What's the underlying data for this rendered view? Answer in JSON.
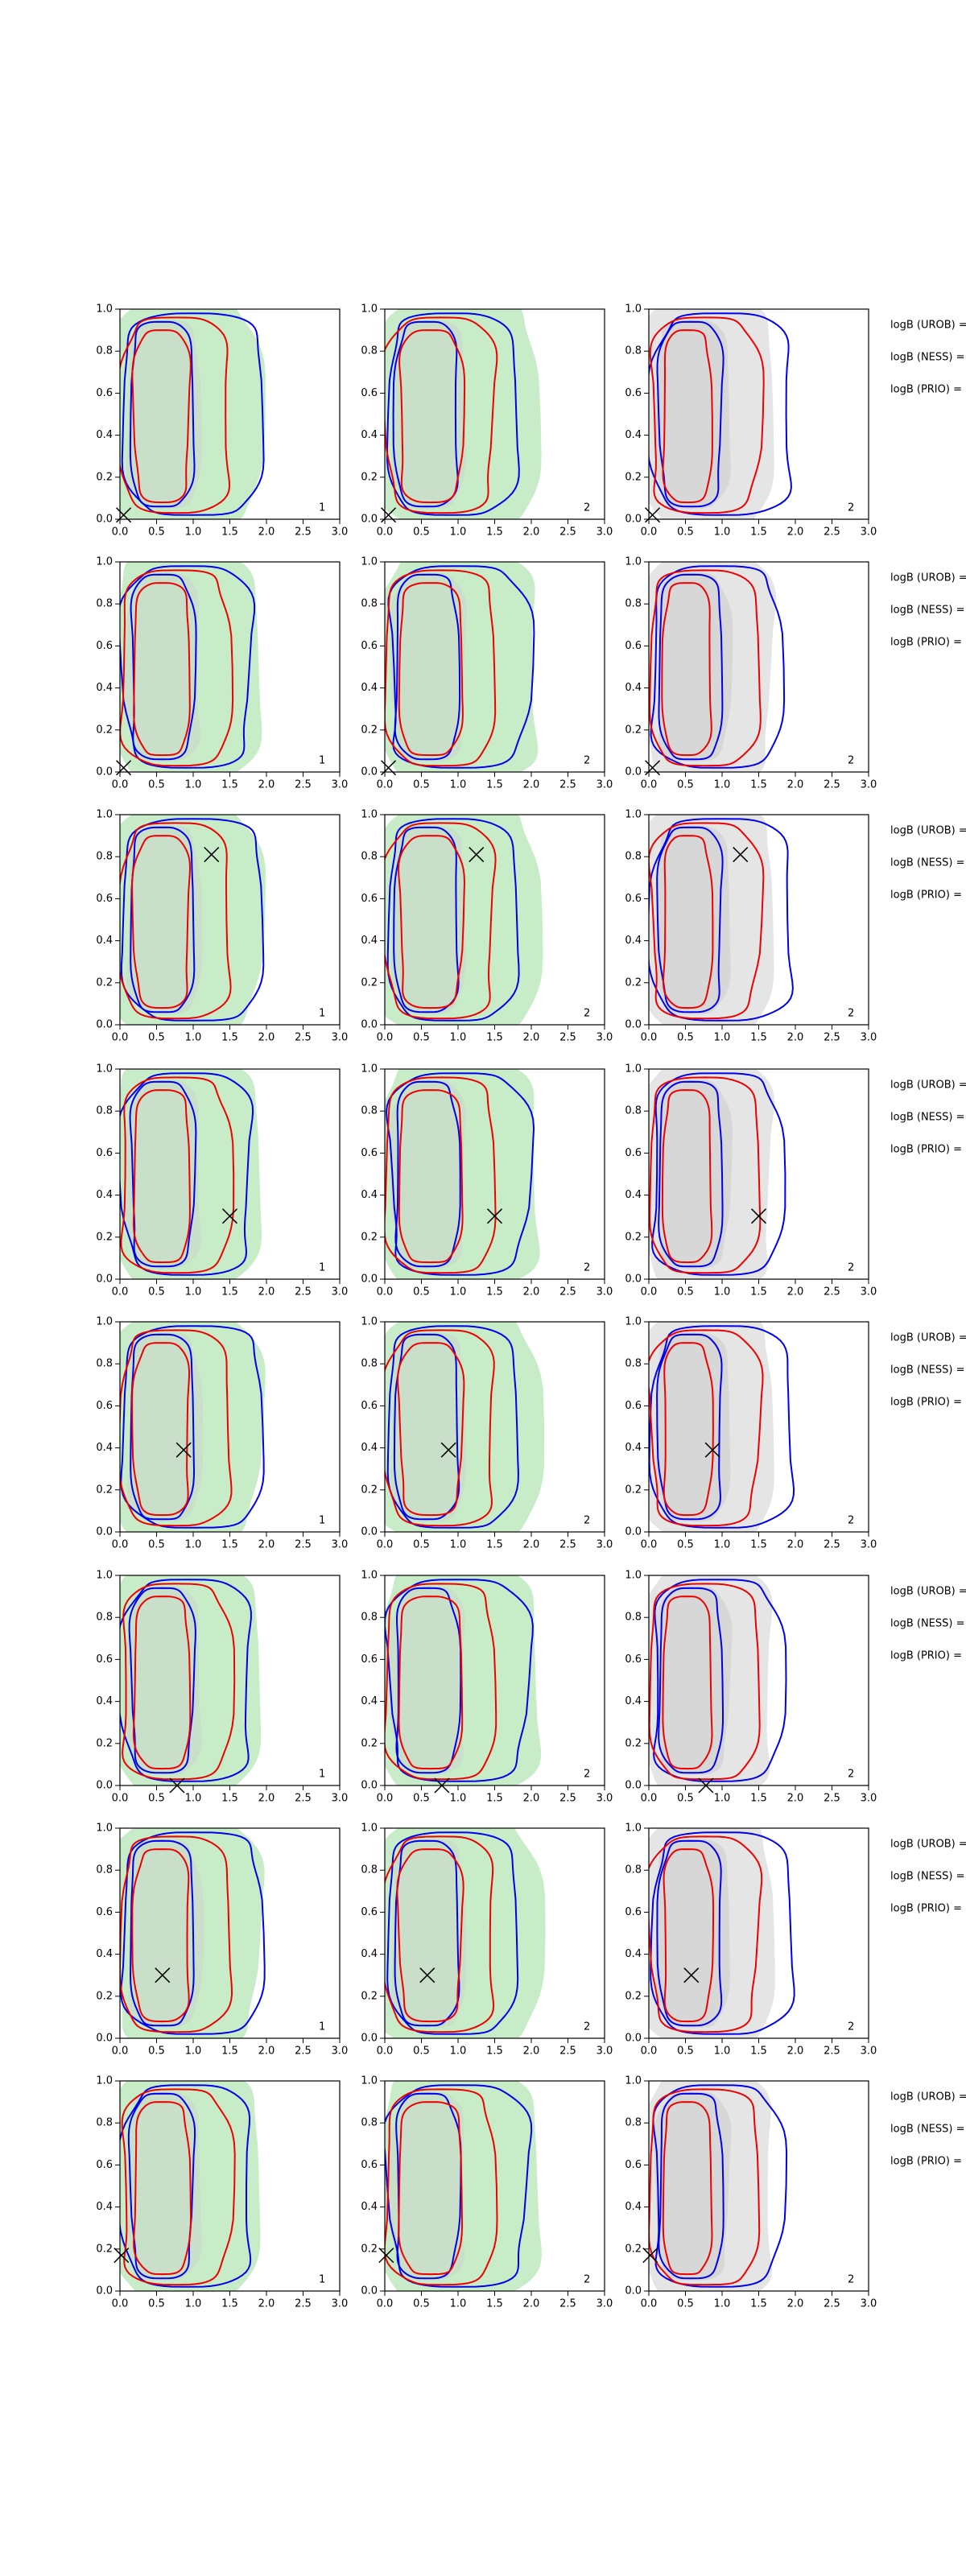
{
  "chart_data": {
    "type": "contour",
    "xlim": [
      0,
      3
    ],
    "ylim": [
      0,
      1
    ],
    "xticks": [
      {
        "value": 0,
        "label": "0.0"
      },
      {
        "value": 0.5,
        "label": "0.5"
      },
      {
        "value": 1,
        "label": "1.0"
      },
      {
        "value": 1.5,
        "label": "1.5"
      },
      {
        "value": 2,
        "label": "2.0"
      },
      {
        "value": 2.5,
        "label": "2.5"
      },
      {
        "value": 3,
        "label": "3.0"
      }
    ],
    "yticks": [
      {
        "value": 0,
        "label": "0.0"
      },
      {
        "value": 0.2,
        "label": "0.2"
      },
      {
        "value": 0.4,
        "label": "0.4"
      },
      {
        "value": 0.6,
        "label": "0.6"
      },
      {
        "value": 0.8,
        "label": "0.8"
      },
      {
        "value": 1,
        "label": "1.0"
      }
    ],
    "rows": [
      {
        "panels": [
          "1",
          "2",
          "2"
        ],
        "marker": {
          "x": 0.05,
          "y": 0.02
        },
        "annotations": [
          "logB (UROB) =",
          "logB (NESS) =",
          "logB (PRIO) ="
        ]
      },
      {
        "panels": [
          "1",
          "2",
          "2"
        ],
        "marker": {
          "x": 0.05,
          "y": 0.02
        },
        "annotations": [
          "logB (UROB) =",
          "logB (NESS) =",
          "logB (PRIO) ="
        ]
      },
      {
        "panels": [
          "1",
          "2",
          "2"
        ],
        "marker": {
          "x": 1.25,
          "y": 0.81
        },
        "annotations": [
          "logB (UROB) =",
          "logB (NESS) =",
          "logB (PRIO) ="
        ]
      },
      {
        "panels": [
          "1",
          "2",
          "2"
        ],
        "marker": {
          "x": 1.5,
          "y": 0.3
        },
        "annotations": [
          "logB (UROB) =",
          "logB (NESS) =",
          "logB (PRIO) ="
        ]
      },
      {
        "panels": [
          "1",
          "2",
          "2"
        ],
        "marker": {
          "x": 0.87,
          "y": 0.39
        },
        "annotations": [
          "logB (UROB) =",
          "logB (NESS) =",
          "logB (PRIO) ="
        ]
      },
      {
        "panels": [
          "1",
          "2",
          "2"
        ],
        "marker": {
          "x": 0.78,
          "y": 0.0
        },
        "annotations": [
          "logB (UROB) =",
          "logB (NESS) =",
          "logB (PRIO) ="
        ]
      },
      {
        "panels": [
          "1",
          "2",
          "2"
        ],
        "marker": {
          "x": 0.58,
          "y": 0.3
        },
        "annotations": [
          "logB (UROB) =",
          "logB (NESS) =",
          "logB (PRIO) ="
        ]
      },
      {
        "panels": [
          "1",
          "2",
          "2"
        ],
        "marker": {
          "x": 0.02,
          "y": 0.17
        },
        "annotations": [
          "logB (UROB) =",
          "logB (NESS) =",
          "logB (PRIO) ="
        ]
      }
    ]
  }
}
